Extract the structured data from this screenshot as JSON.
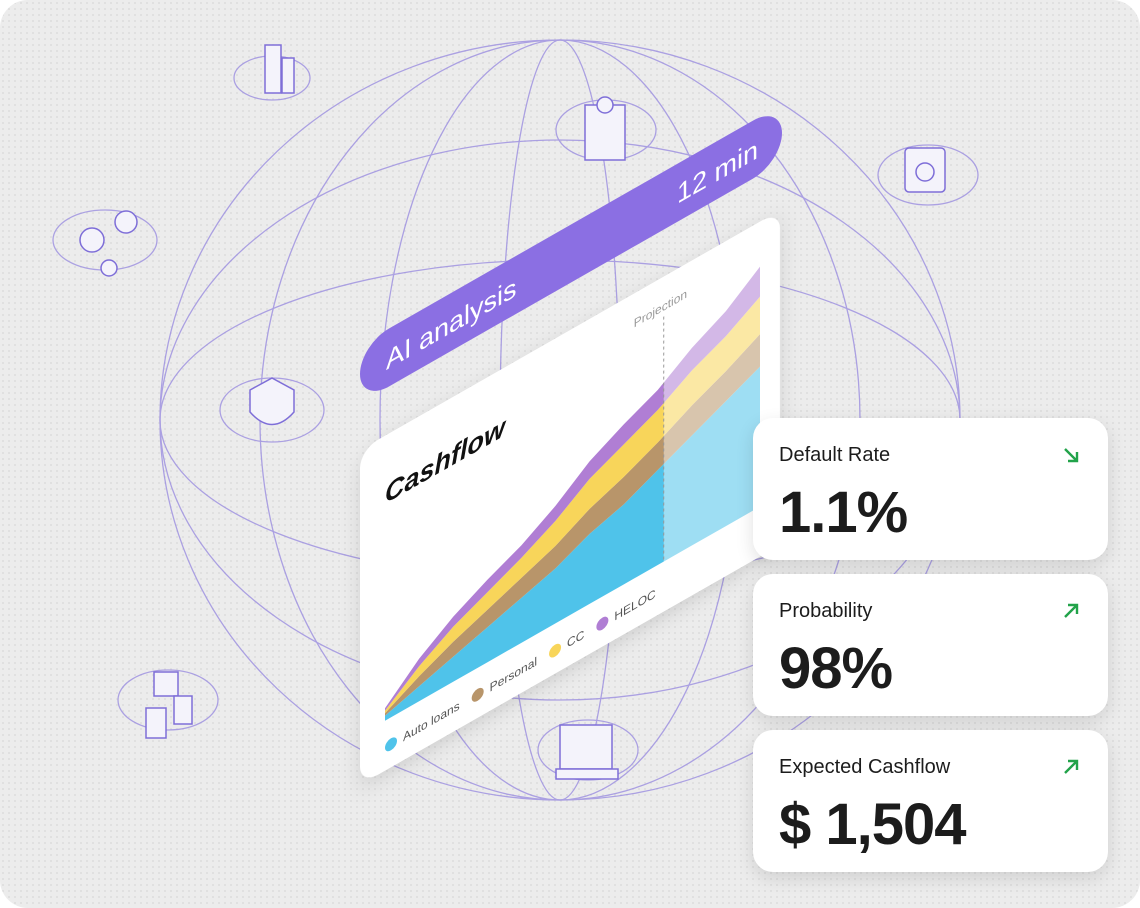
{
  "banner": {
    "title": "AI analysis",
    "duration": "12 min"
  },
  "chart_data": {
    "type": "area",
    "title": "Cashflow",
    "annotation": "Projection",
    "series": [
      {
        "name": "Auto loans",
        "color": "#4fc3ea",
        "values": [
          2,
          6,
          10,
          14,
          18,
          22,
          28,
          32,
          38,
          44,
          50,
          56
        ]
      },
      {
        "name": "Personal",
        "color": "#b8956a",
        "values": [
          1,
          4,
          6,
          7,
          8,
          9,
          10,
          11,
          11,
          12,
          12,
          13
        ]
      },
      {
        "name": "CC",
        "color": "#f8d55a",
        "values": [
          1,
          4,
          6,
          7,
          8,
          10,
          12,
          13,
          13,
          14,
          14,
          15
        ]
      },
      {
        "name": "HELOC",
        "color": "#b07ed4",
        "values": [
          1,
          3,
          4,
          5,
          5,
          6,
          7,
          8,
          8,
          9,
          10,
          12
        ]
      }
    ]
  },
  "metrics": [
    {
      "label": "Default Rate",
      "value": "1.1%"
    },
    {
      "label": "Probability",
      "value": "98%"
    },
    {
      "label": "Expected Cashflow",
      "value": "$ 1,504"
    }
  ]
}
